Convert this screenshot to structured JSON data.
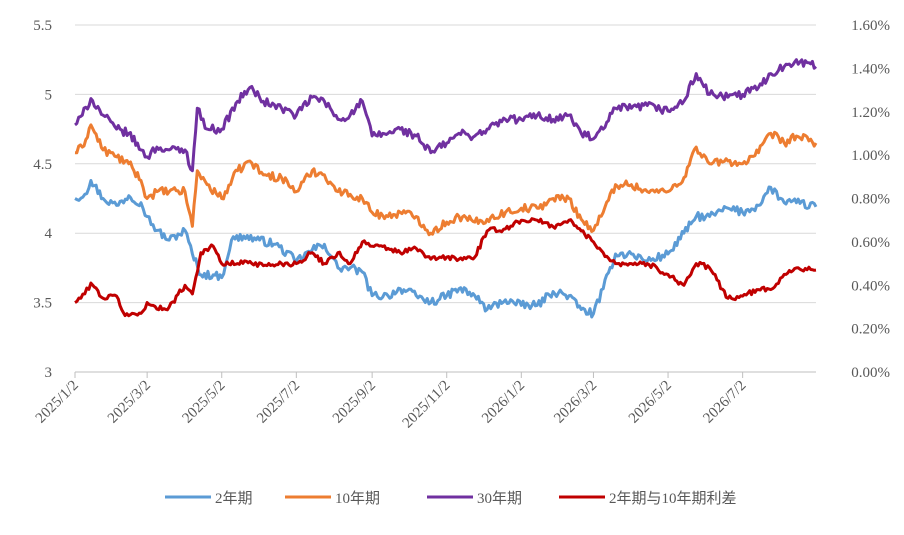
{
  "chart_data": {
    "type": "line",
    "y_left": {
      "ticks": [
        "3",
        "3.5",
        "4",
        "4.5",
        "5",
        "5.5"
      ],
      "lim": [
        3,
        5.5
      ]
    },
    "y_right": {
      "ticks": [
        "0.00%",
        "0.20%",
        "0.40%",
        "0.60%",
        "0.80%",
        "1.00%",
        "1.20%",
        "1.40%",
        "1.60%"
      ],
      "lim": [
        0,
        1.6
      ]
    },
    "x": {
      "start": "2025-01-02",
      "end": "2026-08-31",
      "ticks": [
        "2025/1/2",
        "2025/3/2",
        "2025/5/2",
        "2025/7/2",
        "2025/9/2",
        "2025/11/2",
        "2026/1/2",
        "2026/3/2",
        "2026/5/2",
        "2026/7/2"
      ]
    },
    "grid": "horizontal",
    "legend_position": "bottom",
    "series": [
      {
        "name": "2年期",
        "axis": "left",
        "color": "#5B9BD5",
        "points": [
          [
            "2025-01-02",
            4.25
          ],
          [
            "2025-01-10",
            4.28
          ],
          [
            "2025-01-15",
            4.38
          ],
          [
            "2025-01-25",
            4.25
          ],
          [
            "2025-02-05",
            4.2
          ],
          [
            "2025-02-15",
            4.27
          ],
          [
            "2025-02-25",
            4.22
          ],
          [
            "2025-03-02",
            4.12
          ],
          [
            "2025-03-10",
            4.02
          ],
          [
            "2025-03-20",
            3.95
          ],
          [
            "2025-04-02",
            4.02
          ],
          [
            "2025-04-08",
            3.85
          ],
          [
            "2025-04-15",
            3.7
          ],
          [
            "2025-04-25",
            3.7
          ],
          [
            "2025-05-02",
            3.68
          ],
          [
            "2025-05-10",
            3.95
          ],
          [
            "2025-05-20",
            3.98
          ],
          [
            "2025-06-02",
            3.95
          ],
          [
            "2025-06-15",
            3.92
          ],
          [
            "2025-07-02",
            3.8
          ],
          [
            "2025-07-15",
            3.88
          ],
          [
            "2025-07-25",
            3.92
          ],
          [
            "2025-08-05",
            3.75
          ],
          [
            "2025-08-15",
            3.75
          ],
          [
            "2025-08-25",
            3.72
          ],
          [
            "2025-09-02",
            3.55
          ],
          [
            "2025-09-15",
            3.55
          ],
          [
            "2025-09-25",
            3.6
          ],
          [
            "2025-10-08",
            3.55
          ],
          [
            "2025-10-20",
            3.5
          ],
          [
            "2025-11-02",
            3.55
          ],
          [
            "2025-11-12",
            3.6
          ],
          [
            "2025-11-25",
            3.55
          ],
          [
            "2025-12-05",
            3.45
          ],
          [
            "2025-12-20",
            3.52
          ],
          [
            "2026-01-02",
            3.48
          ],
          [
            "2026-01-15",
            3.48
          ],
          [
            "2026-01-28",
            3.58
          ],
          [
            "2026-02-10",
            3.55
          ],
          [
            "2026-02-20",
            3.45
          ],
          [
            "2026-03-02",
            3.42
          ],
          [
            "2026-03-10",
            3.6
          ],
          [
            "2026-03-20",
            3.85
          ],
          [
            "2026-04-02",
            3.85
          ],
          [
            "2026-04-15",
            3.8
          ],
          [
            "2026-05-02",
            3.85
          ],
          [
            "2026-05-15",
            4.0
          ],
          [
            "2026-05-25",
            4.12
          ],
          [
            "2026-06-05",
            4.12
          ],
          [
            "2026-06-20",
            4.18
          ],
          [
            "2026-07-02",
            4.15
          ],
          [
            "2026-07-15",
            4.2
          ],
          [
            "2026-07-25",
            4.33
          ],
          [
            "2026-08-05",
            4.22
          ],
          [
            "2026-08-15",
            4.22
          ],
          [
            "2026-08-31",
            4.19
          ]
        ]
      },
      {
        "name": "10年期",
        "axis": "left",
        "color": "#ED7D31",
        "points": [
          [
            "2025-01-02",
            4.58
          ],
          [
            "2025-01-08",
            4.62
          ],
          [
            "2025-01-15",
            4.78
          ],
          [
            "2025-01-25",
            4.6
          ],
          [
            "2025-02-05",
            4.55
          ],
          [
            "2025-02-15",
            4.5
          ],
          [
            "2025-02-25",
            4.38
          ],
          [
            "2025-03-02",
            4.25
          ],
          [
            "2025-03-10",
            4.3
          ],
          [
            "2025-03-20",
            4.3
          ],
          [
            "2025-04-02",
            4.3
          ],
          [
            "2025-04-08",
            4.05
          ],
          [
            "2025-04-12",
            4.45
          ],
          [
            "2025-04-20",
            4.35
          ],
          [
            "2025-05-02",
            4.25
          ],
          [
            "2025-05-15",
            4.45
          ],
          [
            "2025-05-25",
            4.52
          ],
          [
            "2025-06-05",
            4.42
          ],
          [
            "2025-06-20",
            4.4
          ],
          [
            "2025-07-02",
            4.3
          ],
          [
            "2025-07-15",
            4.45
          ],
          [
            "2025-07-25",
            4.42
          ],
          [
            "2025-08-05",
            4.3
          ],
          [
            "2025-08-15",
            4.28
          ],
          [
            "2025-08-25",
            4.25
          ],
          [
            "2025-09-02",
            4.15
          ],
          [
            "2025-09-15",
            4.12
          ],
          [
            "2025-09-25",
            4.15
          ],
          [
            "2025-10-08",
            4.12
          ],
          [
            "2025-10-20",
            4.0
          ],
          [
            "2025-11-02",
            4.08
          ],
          [
            "2025-11-12",
            4.12
          ],
          [
            "2025-11-25",
            4.08
          ],
          [
            "2025-12-05",
            4.1
          ],
          [
            "2025-12-20",
            4.15
          ],
          [
            "2026-01-02",
            4.18
          ],
          [
            "2026-01-15",
            4.18
          ],
          [
            "2026-01-28",
            4.25
          ],
          [
            "2026-02-10",
            4.25
          ],
          [
            "2026-02-20",
            4.1
          ],
          [
            "2026-03-02",
            4.02
          ],
          [
            "2026-03-10",
            4.15
          ],
          [
            "2026-03-20",
            4.35
          ],
          [
            "2026-04-02",
            4.35
          ],
          [
            "2026-04-15",
            4.3
          ],
          [
            "2026-05-02",
            4.3
          ],
          [
            "2026-05-15",
            4.4
          ],
          [
            "2026-05-25",
            4.62
          ],
          [
            "2026-06-05",
            4.5
          ],
          [
            "2026-06-20",
            4.52
          ],
          [
            "2026-07-02",
            4.5
          ],
          [
            "2026-07-15",
            4.58
          ],
          [
            "2026-07-25",
            4.72
          ],
          [
            "2026-08-05",
            4.65
          ],
          [
            "2026-08-15",
            4.7
          ],
          [
            "2026-08-31",
            4.65
          ]
        ]
      },
      {
        "name": "30年期",
        "axis": "left",
        "color": "#7030A0",
        "points": [
          [
            "2025-01-02",
            4.78
          ],
          [
            "2025-01-08",
            4.85
          ],
          [
            "2025-01-15",
            4.97
          ],
          [
            "2025-01-25",
            4.85
          ],
          [
            "2025-02-05",
            4.75
          ],
          [
            "2025-02-15",
            4.72
          ],
          [
            "2025-02-25",
            4.6
          ],
          [
            "2025-03-02",
            4.55
          ],
          [
            "2025-03-10",
            4.62
          ],
          [
            "2025-03-20",
            4.6
          ],
          [
            "2025-04-02",
            4.6
          ],
          [
            "2025-04-08",
            4.45
          ],
          [
            "2025-04-12",
            4.9
          ],
          [
            "2025-04-20",
            4.75
          ],
          [
            "2025-05-02",
            4.75
          ],
          [
            "2025-05-15",
            4.95
          ],
          [
            "2025-05-25",
            5.05
          ],
          [
            "2025-06-05",
            4.95
          ],
          [
            "2025-06-20",
            4.9
          ],
          [
            "2025-07-02",
            4.85
          ],
          [
            "2025-07-15",
            4.98
          ],
          [
            "2025-07-25",
            4.95
          ],
          [
            "2025-08-05",
            4.82
          ],
          [
            "2025-08-15",
            4.85
          ],
          [
            "2025-08-25",
            4.95
          ],
          [
            "2025-09-02",
            4.7
          ],
          [
            "2025-09-15",
            4.72
          ],
          [
            "2025-09-25",
            4.75
          ],
          [
            "2025-10-08",
            4.7
          ],
          [
            "2025-10-20",
            4.58
          ],
          [
            "2025-11-02",
            4.65
          ],
          [
            "2025-11-12",
            4.72
          ],
          [
            "2025-11-25",
            4.7
          ],
          [
            "2025-12-05",
            4.75
          ],
          [
            "2025-12-20",
            4.82
          ],
          [
            "2026-01-02",
            4.82
          ],
          [
            "2026-01-15",
            4.85
          ],
          [
            "2026-01-28",
            4.82
          ],
          [
            "2026-02-10",
            4.85
          ],
          [
            "2026-02-20",
            4.72
          ],
          [
            "2026-03-02",
            4.68
          ],
          [
            "2026-03-10",
            4.75
          ],
          [
            "2026-03-20",
            4.9
          ],
          [
            "2026-04-02",
            4.9
          ],
          [
            "2026-04-15",
            4.92
          ],
          [
            "2026-05-02",
            4.88
          ],
          [
            "2026-05-15",
            4.95
          ],
          [
            "2026-05-25",
            5.15
          ],
          [
            "2026-06-05",
            5.0
          ],
          [
            "2026-06-20",
            4.98
          ],
          [
            "2026-07-02",
            5.0
          ],
          [
            "2026-07-15",
            5.05
          ],
          [
            "2026-07-25",
            5.15
          ],
          [
            "2026-08-05",
            5.2
          ],
          [
            "2026-08-15",
            5.25
          ],
          [
            "2026-08-31",
            5.2
          ]
        ]
      },
      {
        "name": "2年期与10年期利差",
        "axis": "right",
        "color": "#C00000",
        "points": [
          [
            "2025-01-02",
            0.32
          ],
          [
            "2025-01-10",
            0.36
          ],
          [
            "2025-01-15",
            0.41
          ],
          [
            "2025-01-25",
            0.34
          ],
          [
            "2025-02-05",
            0.35
          ],
          [
            "2025-02-12",
            0.26
          ],
          [
            "2025-02-25",
            0.27
          ],
          [
            "2025-03-02",
            0.32
          ],
          [
            "2025-03-10",
            0.29
          ],
          [
            "2025-03-20",
            0.3
          ],
          [
            "2025-04-02",
            0.4
          ],
          [
            "2025-04-08",
            0.36
          ],
          [
            "2025-04-15",
            0.55
          ],
          [
            "2025-04-25",
            0.58
          ],
          [
            "2025-05-02",
            0.5
          ],
          [
            "2025-05-15",
            0.5
          ],
          [
            "2025-05-25",
            0.51
          ],
          [
            "2025-06-05",
            0.49
          ],
          [
            "2025-06-20",
            0.5
          ],
          [
            "2025-07-02",
            0.5
          ],
          [
            "2025-07-15",
            0.55
          ],
          [
            "2025-07-25",
            0.5
          ],
          [
            "2025-08-05",
            0.55
          ],
          [
            "2025-08-15",
            0.5
          ],
          [
            "2025-08-25",
            0.6
          ],
          [
            "2025-09-02",
            0.58
          ],
          [
            "2025-09-15",
            0.57
          ],
          [
            "2025-09-25",
            0.55
          ],
          [
            "2025-10-08",
            0.57
          ],
          [
            "2025-10-20",
            0.52
          ],
          [
            "2025-11-02",
            0.53
          ],
          [
            "2025-11-12",
            0.52
          ],
          [
            "2025-11-25",
            0.53
          ],
          [
            "2025-12-05",
            0.65
          ],
          [
            "2025-12-20",
            0.66
          ],
          [
            "2026-01-02",
            0.7
          ],
          [
            "2026-01-15",
            0.7
          ],
          [
            "2026-01-28",
            0.67
          ],
          [
            "2026-02-10",
            0.7
          ],
          [
            "2026-02-20",
            0.65
          ],
          [
            "2026-03-02",
            0.6
          ],
          [
            "2026-03-10",
            0.55
          ],
          [
            "2026-03-20",
            0.5
          ],
          [
            "2026-04-02",
            0.5
          ],
          [
            "2026-04-15",
            0.5
          ],
          [
            "2026-05-02",
            0.45
          ],
          [
            "2026-05-15",
            0.4
          ],
          [
            "2026-05-25",
            0.5
          ],
          [
            "2026-06-05",
            0.48
          ],
          [
            "2026-06-20",
            0.34
          ],
          [
            "2026-07-02",
            0.35
          ],
          [
            "2026-07-15",
            0.38
          ],
          [
            "2026-07-25",
            0.38
          ],
          [
            "2026-08-05",
            0.45
          ],
          [
            "2026-08-15",
            0.48
          ],
          [
            "2026-08-31",
            0.47
          ]
        ]
      }
    ]
  }
}
